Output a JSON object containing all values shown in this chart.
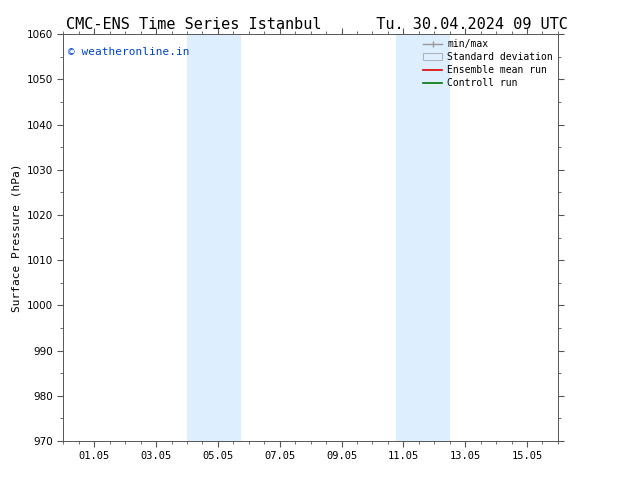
{
  "title_left": "CMC-ENS Time Series Istanbul",
  "title_right": "Tu. 30.04.2024 09 UTC",
  "ylabel": "Surface Pressure (hPa)",
  "ylim": [
    970,
    1060
  ],
  "ytick_values": [
    970,
    980,
    990,
    1000,
    1010,
    1020,
    1030,
    1040,
    1050,
    1060
  ],
  "xtick_labels": [
    "01.05",
    "03.05",
    "05.05",
    "07.05",
    "09.05",
    "11.05",
    "13.05",
    "15.05"
  ],
  "xtick_positions": [
    1,
    3,
    5,
    7,
    9,
    11,
    13,
    15
  ],
  "xlim_start": 0.0,
  "xlim_end": 16.0,
  "shaded_regions": [
    {
      "x_start": 4.0,
      "x_end": 5.75,
      "color": "#ddeeff"
    },
    {
      "x_start": 10.75,
      "x_end": 12.5,
      "color": "#ddeeff"
    }
  ],
  "watermark_text": "© weatheronline.in",
  "watermark_color": "#0044cc",
  "watermark_fontsize": 8,
  "legend_labels": [
    "min/max",
    "Standard deviation",
    "Ensemble mean run",
    "Controll run"
  ],
  "legend_colors_line": [
    "#999999",
    "#cccccc",
    "#dd0000",
    "#007700"
  ],
  "bg_color": "#ffffff",
  "spine_color": "#555555",
  "tick_color": "#333333",
  "title_fontsize": 11,
  "ylabel_fontsize": 8,
  "tick_fontsize": 7.5,
  "legend_fontsize": 7
}
